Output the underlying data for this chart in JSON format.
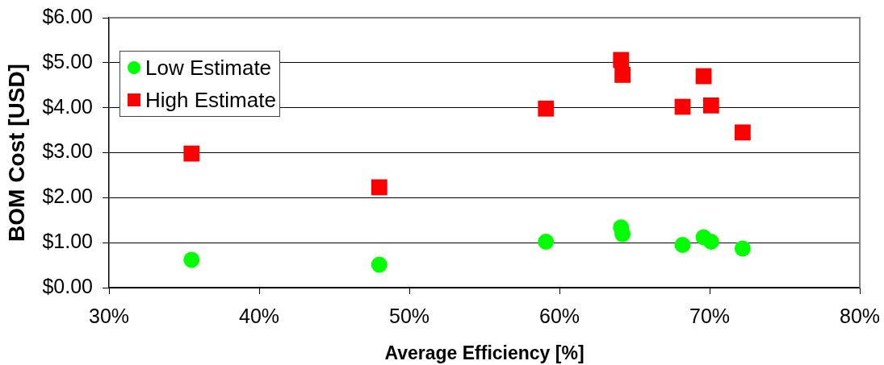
{
  "chart_data": {
    "type": "scatter",
    "xlabel": "Average Efficiency [%]",
    "ylabel": "BOM Cost [USD]",
    "x": [
      35.5,
      48.0,
      59.1,
      64.1,
      64.2,
      68.2,
      69.6,
      70.1,
      72.2
    ],
    "series": [
      {
        "name": "Low Estimate",
        "color": "#00ff00",
        "marker": "circle",
        "values": [
          0.62,
          0.51,
          1.02,
          1.34,
          1.19,
          0.95,
          1.12,
          1.02,
          0.87
        ]
      },
      {
        "name": "High Estimate",
        "color": "#ff0000",
        "marker": "square",
        "values": [
          2.98,
          2.23,
          3.98,
          5.06,
          4.73,
          4.02,
          4.7,
          4.05,
          3.45
        ]
      }
    ],
    "xlim": [
      30,
      80
    ],
    "xticks": [
      {
        "value": 30,
        "label": "30%"
      },
      {
        "value": 40,
        "label": "40%"
      },
      {
        "value": 50,
        "label": "50%"
      },
      {
        "value": 60,
        "label": "60%"
      },
      {
        "value": 70,
        "label": "70%"
      },
      {
        "value": 80,
        "label": "80%"
      }
    ],
    "ylim": [
      0,
      6
    ],
    "yticks": [
      {
        "value": 0,
        "label": "$0.00"
      },
      {
        "value": 1,
        "label": "$1.00"
      },
      {
        "value": 2,
        "label": "$2.00"
      },
      {
        "value": 3,
        "label": "$3.00"
      },
      {
        "value": 4,
        "label": "$4.00"
      },
      {
        "value": 5,
        "label": "$5.00"
      },
      {
        "value": 6,
        "label": "$6.00"
      }
    ],
    "grid": "y",
    "legend": "top left"
  }
}
